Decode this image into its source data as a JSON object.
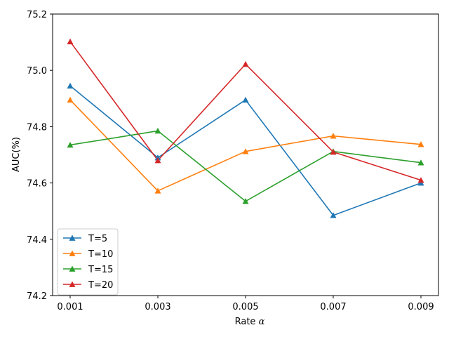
{
  "chart_data": {
    "type": "line",
    "title": "",
    "xlabel": "Rate",
    "xlabel_symbol": "α",
    "ylabel": "AUC(%)",
    "x": [
      0.001,
      0.003,
      0.005,
      0.007,
      0.009
    ],
    "x_tick_labels": [
      "0.001",
      "0.003",
      "0.005",
      "0.007",
      "0.009"
    ],
    "ylim": [
      74.2,
      75.2
    ],
    "y_ticks": [
      74.2,
      74.4,
      74.6,
      74.8,
      75.0,
      75.2
    ],
    "y_tick_labels": [
      "74.2",
      "74.4",
      "74.6",
      "74.8",
      "75.0",
      "75.2"
    ],
    "grid": false,
    "legend_position": "lower-left",
    "marker": "triangle-up",
    "series": [
      {
        "name": "T=5",
        "color": "#1f77b4",
        "values": [
          74.945,
          74.69,
          74.895,
          74.485,
          74.6
        ]
      },
      {
        "name": "T=10",
        "color": "#ff7f0e",
        "values": [
          74.895,
          74.572,
          74.712,
          74.767,
          74.737
        ]
      },
      {
        "name": "T=15",
        "color": "#2ca02c",
        "values": [
          74.735,
          74.785,
          74.535,
          74.712,
          74.672
        ]
      },
      {
        "name": "T=20",
        "color": "#d62728",
        "values": [
          75.102,
          74.68,
          75.022,
          74.71,
          74.61
        ]
      }
    ]
  }
}
